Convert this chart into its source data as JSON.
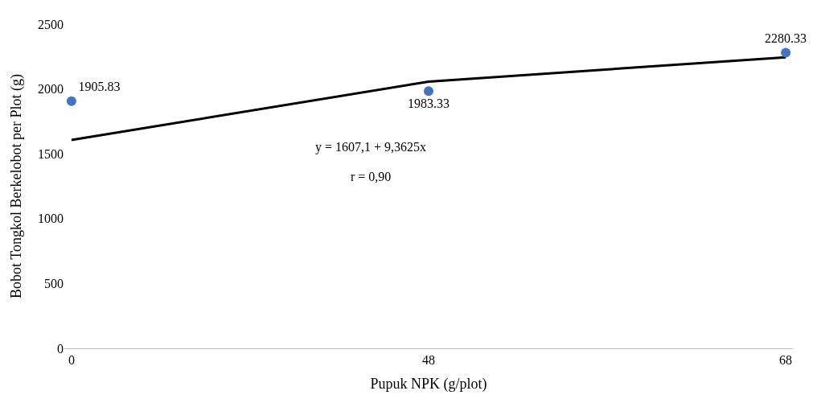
{
  "chart_data": {
    "type": "scatter",
    "xlabel": "Pupuk NPK (g/plot)",
    "ylabel": "Bobot Tongkol Berkelobot per Plot (g)",
    "categories": [
      "0",
      "48",
      "68"
    ],
    "series": [
      {
        "type": "line",
        "color": "#000000",
        "values": [
          1607,
          2057,
          2244
        ],
        "marker": "none",
        "line_style": "solid"
      },
      {
        "color": "#4472c4",
        "values": [
          1905.83,
          1983.33,
          2280.33
        ],
        "value_labels": [
          "1905.83",
          "1983.33",
          "2280.33"
        ],
        "marker": "circle"
      }
    ],
    "ylim": [
      0,
      2500
    ],
    "yticks": [
      0,
      500,
      1000,
      1500,
      2000,
      2500
    ],
    "annotations": [
      "y = 1607,1 + 9,3625x",
      "r = 0,90"
    ]
  }
}
